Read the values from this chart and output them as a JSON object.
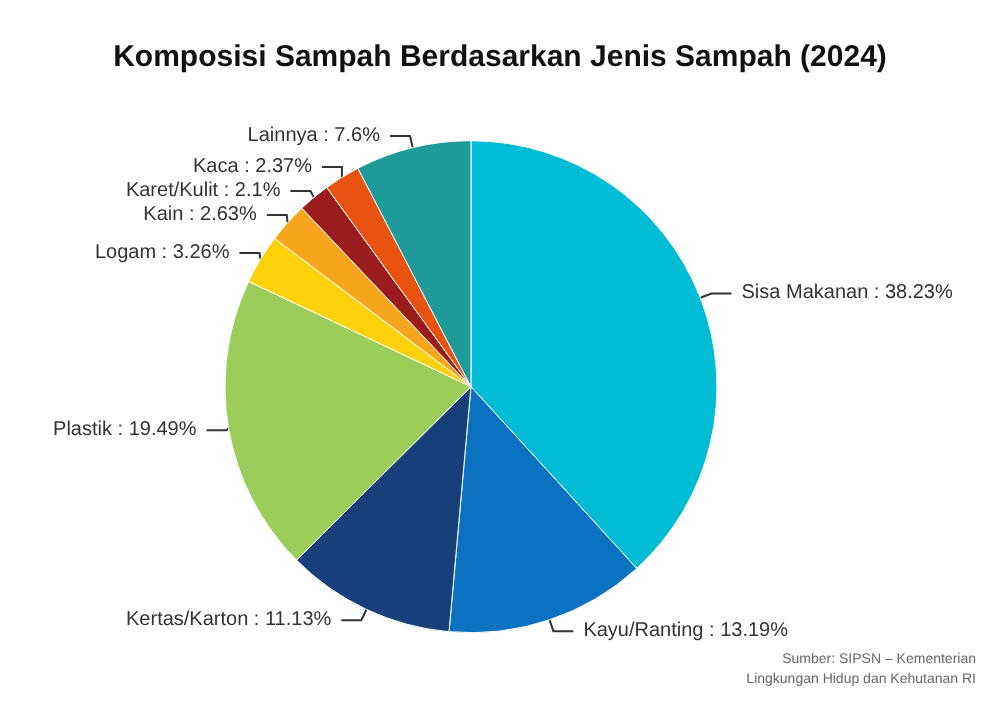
{
  "chart_data": {
    "type": "pie",
    "title": "Komposisi Sampah Berdasarkan Jenis Sampah (2024)",
    "categories": [
      "Sisa Makanan",
      "Kayu/Ranting",
      "Kertas/Karton",
      "Plastik",
      "Logam",
      "Kain",
      "Karet/Kulit",
      "Kaca",
      "Lainnya"
    ],
    "values": [
      38.23,
      13.19,
      11.13,
      19.49,
      3.26,
      2.63,
      2.1,
      2.37,
      7.6
    ],
    "value_labels": [
      "38.23%",
      "13.19%",
      "11.13%",
      "19.49%",
      "3.26%",
      "2.63%",
      "2.1%",
      "2.37%",
      "7.6%"
    ],
    "colors": [
      "#00bcd4",
      "#0a72c0",
      "#173f7a",
      "#9ccc5a",
      "#fdd20a",
      "#f8a51e",
      "#9b1c1c",
      "#e8540f",
      "#1d9a99"
    ],
    "annotations": [
      "Sumber: SIPSN – Kementerian\nLingkungan Hidup dan Kehutanan RI"
    ]
  }
}
